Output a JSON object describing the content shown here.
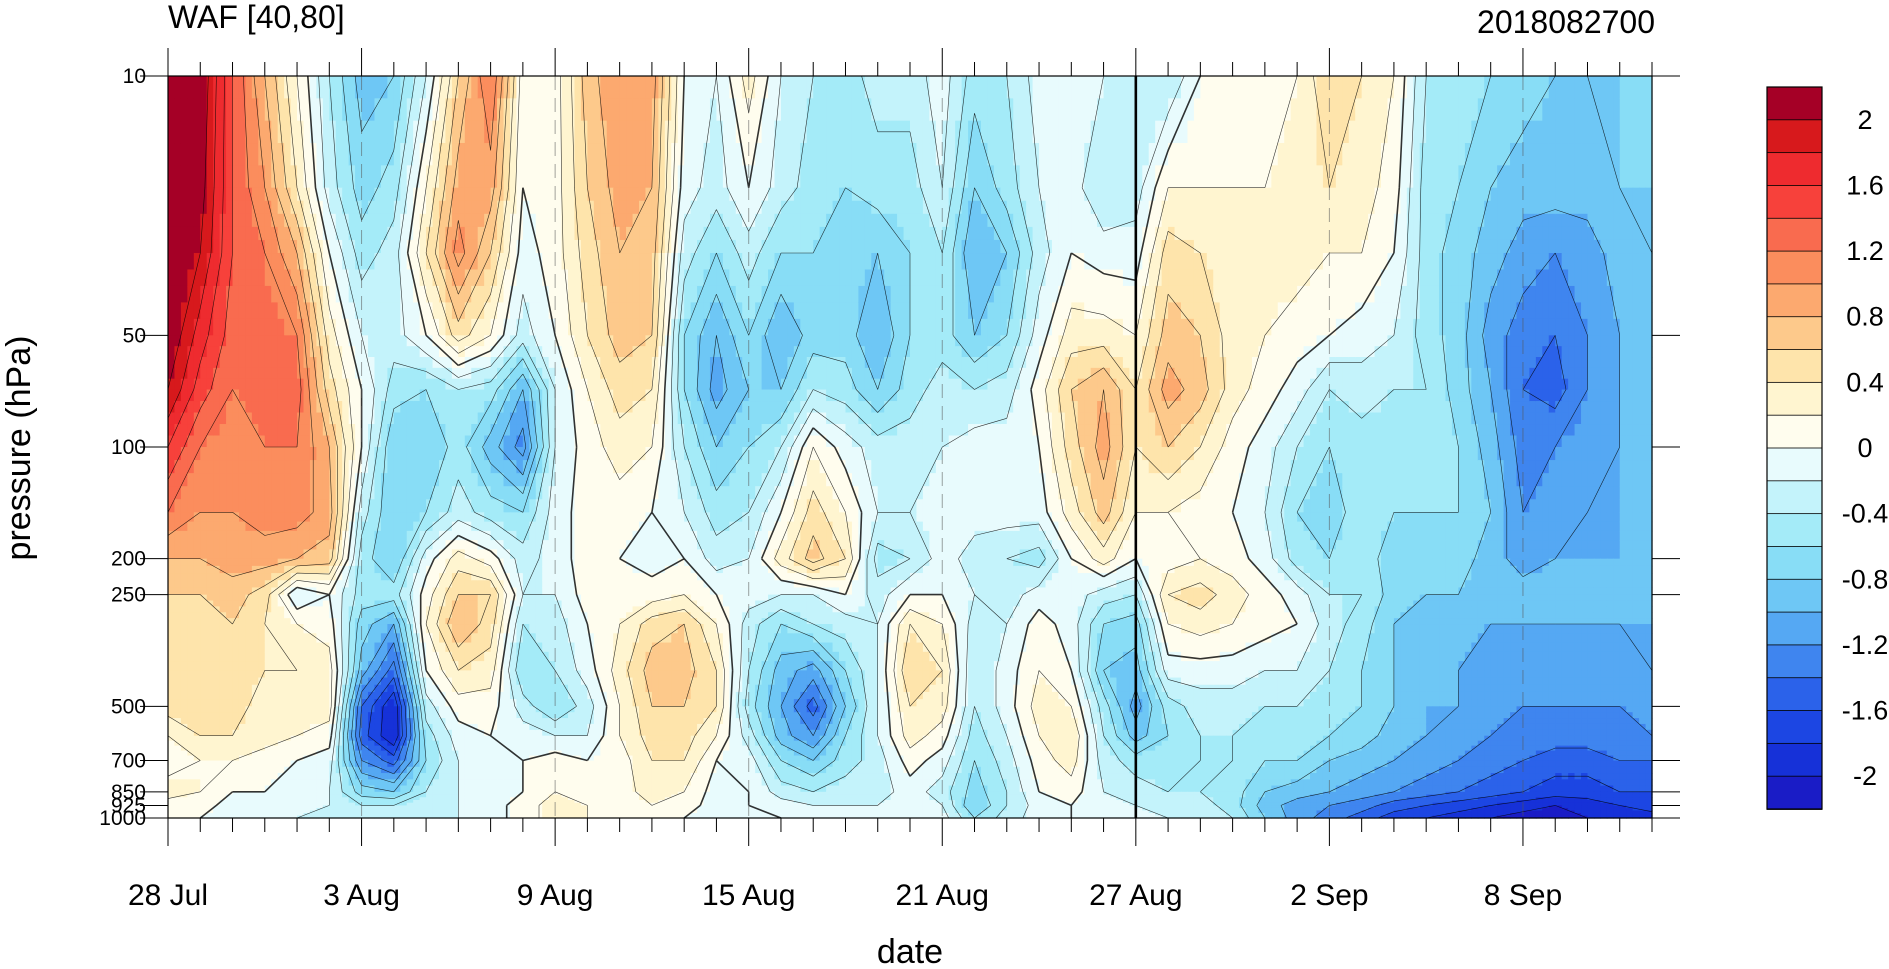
{
  "chart_data": {
    "type": "contour",
    "title": "WAF [40,80]",
    "right_title": "2018082700",
    "xlabel": "date",
    "ylabel": "pressure (hPa)",
    "x_ticks": [
      "28 Jul",
      "3 Aug",
      "9 Aug",
      "15 Aug",
      "21 Aug",
      "27 Aug",
      "2 Sep",
      "8 Sep"
    ],
    "x_range": [
      "2018-07-28",
      "2018-09-12"
    ],
    "marker_date": "27 Aug",
    "y_ticks": [
      10,
      50,
      100,
      200,
      250,
      500,
      700,
      850,
      925,
      1000
    ],
    "y_tick_labels": [
      "10",
      "50",
      "100",
      "200",
      "250",
      "500",
      "700",
      "850",
      "925",
      "1000"
    ],
    "y_scale": "log",
    "y_range": [
      1000,
      10
    ],
    "colorbar": {
      "labels": [
        "2",
        "1.6",
        "1.2",
        "0.8",
        "0.4",
        "0",
        "-0.4",
        "-0.8",
        "-1.2",
        "-1.6",
        "-2"
      ],
      "levels": [
        2.2,
        2.0,
        1.8,
        1.6,
        1.4,
        1.2,
        1.0,
        0.8,
        0.6,
        0.4,
        0.2,
        0.0,
        -0.2,
        -0.4,
        -0.6,
        -0.8,
        -1.0,
        -1.2,
        -1.4,
        -1.6,
        -1.8,
        -2.0,
        -2.2
      ],
      "colors": [
        "#a50026",
        "#d7191c",
        "#ee2b2f",
        "#f7413b",
        "#f96b4f",
        "#fb8d5d",
        "#fca96f",
        "#fdc98b",
        "#fee4ab",
        "#fff5d0",
        "#fffdee",
        "#e8fbfd",
        "#c4f3fb",
        "#a4ebf8",
        "#88ddf6",
        "#6ec7f5",
        "#55a8f3",
        "#3f85ef",
        "#2b62ea",
        "#1c46e3",
        "#1631d8",
        "#1a1cc6"
      ]
    },
    "levels": [
      10,
      20,
      30,
      50,
      70,
      100,
      150,
      200,
      250,
      300,
      400,
      500,
      600,
      700,
      850,
      925,
      1000
    ],
    "days": [
      "28 Jul",
      "29 Jul",
      "30 Jul",
      "31 Jul",
      "1 Aug",
      "2 Aug",
      "3 Aug",
      "4 Aug",
      "5 Aug",
      "6 Aug",
      "7 Aug",
      "8 Aug",
      "9 Aug",
      "10 Aug",
      "11 Aug",
      "12 Aug",
      "13 Aug",
      "14 Aug",
      "15 Aug",
      "16 Aug",
      "17 Aug",
      "18 Aug",
      "19 Aug",
      "20 Aug",
      "21 Aug",
      "22 Aug",
      "23 Aug",
      "24 Aug",
      "25 Aug",
      "26 Aug",
      "27 Aug",
      "28 Aug",
      "29 Aug",
      "30 Aug",
      "31 Aug",
      "1 Sep",
      "2 Sep",
      "3 Sep",
      "4 Sep",
      "5 Sep",
      "6 Sep",
      "7 Sep",
      "8 Sep",
      "9 Sep",
      "10 Sep",
      "11 Sep",
      "12 Sep"
    ],
    "values": [
      [
        2.2,
        2.2,
        2.2,
        2.2,
        2.0,
        1.6,
        1.2,
        0.8,
        0.6,
        0.4,
        0.4,
        0.5,
        0.2,
        0.1,
        0.3,
        0.1,
        0.1
      ],
      [
        2.2,
        2.1,
        2.0,
        1.7,
        1.5,
        1.2,
        1.0,
        0.8,
        0.6,
        0.5,
        0.5,
        0.6,
        0.4,
        0.2,
        0.2,
        0.1,
        0.0
      ],
      [
        1.4,
        1.4,
        1.4,
        1.3,
        1.2,
        1.1,
        1.0,
        0.9,
        0.7,
        0.6,
        0.5,
        0.5,
        0.4,
        0.2,
        0.0,
        -0.1,
        -0.1
      ],
      [
        0.8,
        1.0,
        1.2,
        1.3,
        1.3,
        1.2,
        1.1,
        0.9,
        0.5,
        0.4,
        0.4,
        0.3,
        0.3,
        0.1,
        0.0,
        -0.1,
        -0.1
      ],
      [
        0.2,
        0.4,
        0.8,
        1.2,
        1.3,
        1.2,
        1.1,
        0.8,
        -0.2,
        0.2,
        0.4,
        0.3,
        0.2,
        0.0,
        -0.1,
        -0.1,
        -0.2
      ],
      [
        -0.4,
        -0.3,
        0.0,
        0.3,
        0.5,
        0.8,
        0.9,
        0.7,
        0.0,
        0.1,
        0.3,
        0.3,
        0.1,
        -0.1,
        -0.2,
        -0.2,
        -0.3
      ],
      [
        -0.9,
        -0.7,
        -0.5,
        -0.2,
        0.0,
        0.0,
        -0.3,
        -0.5,
        -0.5,
        -0.7,
        -0.9,
        -1.4,
        -1.5,
        -1.2,
        -0.7,
        -0.4,
        -0.3
      ],
      [
        -0.8,
        -0.5,
        -0.3,
        -0.3,
        -0.5,
        -0.8,
        -0.8,
        -0.8,
        -0.5,
        -1.0,
        -1.5,
        -2.0,
        -2.0,
        -1.5,
        -0.8,
        -0.4,
        -0.3
      ],
      [
        -0.2,
        0.2,
        0.4,
        0.0,
        -0.6,
        -0.8,
        -0.6,
        -0.1,
        0.1,
        0.2,
        0.0,
        -0.3,
        -0.5,
        -0.6,
        -0.4,
        -0.3,
        -0.3
      ],
      [
        0.6,
        0.9,
        1.1,
        0.5,
        -0.4,
        -0.5,
        -0.3,
        0.3,
        0.6,
        0.8,
        0.4,
        0.1,
        -0.1,
        -0.2,
        -0.2,
        -0.2,
        -0.2
      ],
      [
        1.2,
        0.9,
        0.6,
        0.2,
        -0.5,
        -0.9,
        -0.5,
        0.1,
        0.6,
        0.5,
        0.3,
        0.1,
        0.0,
        -0.1,
        -0.1,
        -0.1,
        -0.1
      ],
      [
        0.1,
        0.0,
        -0.1,
        -0.3,
        -1.0,
        -1.3,
        -0.6,
        -0.3,
        -0.2,
        -0.4,
        -0.6,
        -0.3,
        -0.1,
        0.0,
        0.0,
        0.1,
        0.1
      ],
      [
        0.1,
        0.1,
        0.1,
        0.0,
        -0.2,
        -0.2,
        -0.1,
        -0.1,
        -0.2,
        -0.3,
        -0.4,
        -0.6,
        -0.2,
        0.1,
        0.2,
        0.3,
        0.3
      ],
      [
        0.7,
        0.6,
        0.5,
        0.4,
        0.2,
        0.1,
        0.1,
        0.1,
        0.1,
        0.0,
        -0.1,
        -0.3,
        -0.2,
        0.0,
        0.1,
        0.2,
        0.2
      ],
      [
        1.0,
        0.9,
        0.8,
        0.7,
        0.5,
        0.3,
        0.1,
        0.0,
        0.1,
        0.2,
        0.3,
        0.2,
        0.2,
        0.1,
        0.1,
        0.1,
        0.1
      ],
      [
        0.9,
        0.8,
        0.7,
        0.6,
        0.4,
        0.2,
        0.0,
        -0.1,
        0.1,
        0.5,
        0.7,
        0.6,
        0.5,
        0.4,
        0.3,
        0.2,
        0.1
      ],
      [
        0.0,
        -0.1,
        -0.3,
        -0.6,
        -0.6,
        -0.4,
        -0.2,
        0.0,
        0.2,
        0.6,
        0.7,
        0.6,
        0.5,
        0.4,
        0.2,
        0.1,
        0.0
      ],
      [
        -0.2,
        -0.3,
        -0.6,
        -1.0,
        -1.1,
        -0.8,
        -0.5,
        -0.3,
        0.0,
        0.2,
        0.4,
        0.4,
        0.2,
        0.0,
        -0.1,
        -0.1,
        -0.1
      ],
      [
        0.3,
        0.0,
        -0.3,
        -0.6,
        -0.8,
        -0.6,
        -0.4,
        -0.2,
        -0.1,
        -0.3,
        -0.4,
        -0.5,
        -0.3,
        -0.1,
        0.0,
        0.0,
        -0.1
      ],
      [
        -0.2,
        -0.3,
        -0.6,
        -1.0,
        -0.8,
        -0.4,
        0.0,
        0.3,
        -0.2,
        -0.6,
        -0.9,
        -1.0,
        -0.9,
        -0.6,
        -0.3,
        -0.1,
        0.0
      ],
      [
        -0.4,
        -0.5,
        -0.6,
        -0.7,
        -0.4,
        0.2,
        0.5,
        0.7,
        -0.2,
        -0.4,
        -1.1,
        -1.5,
        -1.2,
        -0.8,
        -0.4,
        -0.2,
        -0.1
      ],
      [
        -0.5,
        -0.6,
        -0.7,
        -0.7,
        -0.5,
        -0.1,
        0.2,
        0.4,
        0.0,
        -0.3,
        -0.6,
        -0.8,
        -0.6,
        -0.5,
        -0.3,
        -0.2,
        -0.1
      ],
      [
        -0.3,
        -0.5,
        -0.8,
        -1.0,
        -0.8,
        -0.3,
        -0.2,
        -0.5,
        -0.3,
        -0.2,
        -0.2,
        -0.2,
        -0.2,
        -0.3,
        -0.3,
        -0.2,
        -0.1
      ],
      [
        -0.3,
        -0.5,
        -0.6,
        -0.6,
        -0.5,
        -0.3,
        -0.2,
        -0.4,
        0.0,
        0.4,
        0.6,
        0.4,
        0.3,
        0.1,
        -0.1,
        -0.1,
        -0.1
      ],
      [
        -0.1,
        -0.2,
        -0.4,
        -0.5,
        -0.3,
        -0.2,
        -0.1,
        -0.1,
        0.0,
        0.2,
        0.4,
        0.3,
        0.1,
        -0.1,
        -0.3,
        -0.2,
        -0.1
      ],
      [
        -0.5,
        -0.8,
        -1.0,
        -0.8,
        -0.4,
        -0.1,
        -0.1,
        -0.3,
        -0.2,
        -0.3,
        -0.4,
        -0.4,
        -0.5,
        -0.6,
        -0.7,
        -0.8,
        -0.6
      ],
      [
        -0.4,
        -0.5,
        -0.8,
        -0.6,
        -0.3,
        -0.1,
        -0.1,
        -0.4,
        -0.3,
        -0.2,
        -0.1,
        -0.1,
        -0.2,
        -0.3,
        -0.4,
        -0.4,
        -0.3
      ],
      [
        -0.1,
        -0.2,
        -0.3,
        -0.1,
        0.1,
        0.0,
        -0.1,
        -0.5,
        -0.1,
        0.1,
        0.2,
        0.3,
        0.2,
        0.1,
        0.0,
        -0.1,
        -0.1
      ],
      [
        0.0,
        -0.1,
        0.0,
        0.3,
        0.6,
        0.5,
        0.3,
        0.0,
        -0.1,
        -0.1,
        0.0,
        0.2,
        0.4,
        0.3,
        0.1,
        0.0,
        0.0
      ],
      [
        -0.2,
        -0.4,
        -0.1,
        0.3,
        0.8,
        0.9,
        0.7,
        0.3,
        -0.3,
        -0.6,
        -0.8,
        -0.5,
        -0.4,
        -0.3,
        -0.2,
        -0.1,
        -0.1
      ],
      [
        -0.4,
        -0.3,
        -0.1,
        0.2,
        0.4,
        0.4,
        0.2,
        0.0,
        -0.4,
        -0.7,
        -0.9,
        -1.1,
        -0.9,
        -0.5,
        -0.3,
        -0.2,
        -0.1
      ],
      [
        -0.4,
        0.2,
        0.5,
        0.7,
        0.9,
        0.6,
        0.2,
        0.1,
        0.4,
        0.2,
        -0.1,
        -0.5,
        -0.6,
        -0.5,
        -0.4,
        -0.3,
        -0.2
      ],
      [
        0.0,
        0.2,
        0.4,
        0.6,
        0.7,
        0.4,
        0.1,
        0.2,
        0.5,
        0.3,
        -0.1,
        -0.3,
        -0.4,
        -0.4,
        -0.4,
        -0.3,
        -0.2
      ],
      [
        0.0,
        0.2,
        0.3,
        0.3,
        0.3,
        0.1,
        0.0,
        0.1,
        0.3,
        0.2,
        -0.1,
        -0.3,
        -0.4,
        -0.4,
        -0.5,
        -0.5,
        -0.4
      ],
      [
        0.1,
        0.2,
        0.3,
        0.2,
        0.1,
        -0.1,
        -0.2,
        -0.1,
        0.1,
        0.1,
        -0.2,
        -0.4,
        -0.5,
        -0.6,
        -0.8,
        -0.9,
        -0.8
      ],
      [
        0.2,
        0.3,
        0.3,
        0.1,
        -0.1,
        -0.4,
        -0.6,
        -0.5,
        -0.1,
        0.0,
        -0.2,
        -0.4,
        -0.5,
        -0.6,
        -0.9,
        -1.1,
        -1.1
      ],
      [
        0.6,
        0.4,
        0.2,
        0.0,
        -0.4,
        -0.6,
        -0.7,
        -0.6,
        -0.4,
        -0.3,
        -0.4,
        -0.5,
        -0.6,
        -0.8,
        -1.0,
        -1.2,
        -1.3
      ],
      [
        0.4,
        0.3,
        0.2,
        -0.1,
        -0.3,
        -0.5,
        -0.5,
        -0.5,
        -0.4,
        -0.5,
        -0.6,
        -0.6,
        -0.7,
        -0.9,
        -1.1,
        -1.3,
        -1.5
      ],
      [
        0.2,
        0.1,
        0.0,
        -0.2,
        -0.4,
        -0.5,
        -0.6,
        -0.7,
        -0.7,
        -0.8,
        -0.8,
        -0.8,
        -0.9,
        -1.0,
        -1.2,
        -1.5,
        -1.7
      ],
      [
        -0.4,
        -0.5,
        -0.5,
        -0.5,
        -0.4,
        -0.5,
        -0.6,
        -0.7,
        -0.8,
        -0.9,
        -0.9,
        -1.0,
        -1.0,
        -1.1,
        -1.3,
        -1.6,
        -1.8
      ],
      [
        -0.5,
        -0.6,
        -0.7,
        -0.7,
        -0.7,
        -0.6,
        -0.6,
        -0.7,
        -0.8,
        -0.9,
        -1.0,
        -1.0,
        -1.1,
        -1.2,
        -1.4,
        -1.7,
        -1.9
      ],
      [
        -0.6,
        -0.8,
        -0.9,
        -1.1,
        -1.0,
        -0.9,
        -0.8,
        -0.9,
        -0.9,
        -1.0,
        -1.1,
        -1.1,
        -1.2,
        -1.3,
        -1.5,
        -1.8,
        -2.0
      ],
      [
        -0.7,
        -0.9,
        -1.1,
        -1.3,
        -1.4,
        -1.3,
        -1.2,
        -1.1,
        -0.9,
        -1.0,
        -1.1,
        -1.2,
        -1.3,
        -1.4,
        -1.6,
        -1.9,
        -2.1
      ],
      [
        -0.8,
        -0.9,
        -1.2,
        -1.4,
        -1.5,
        -1.2,
        -1.1,
        -1.0,
        -0.9,
        -1.0,
        -1.1,
        -1.2,
        -1.3,
        -1.5,
        -1.7,
        -2.0,
        -2.1
      ],
      [
        -0.8,
        -0.9,
        -1.1,
        -1.2,
        -1.2,
        -1.1,
        -1.0,
        -1.0,
        -0.9,
        -1.0,
        -1.1,
        -1.2,
        -1.3,
        -1.5,
        -1.7,
        -1.9,
        -2.0
      ],
      [
        -0.8,
        -0.8,
        -0.9,
        -1.0,
        -1.0,
        -1.0,
        -1.0,
        -1.0,
        -1.0,
        -1.0,
        -1.1,
        -1.2,
        -1.3,
        -1.4,
        -1.6,
        -1.8,
        -1.9
      ],
      [
        -0.7,
        -0.8,
        -0.8,
        -0.9,
        -0.9,
        -0.9,
        -0.9,
        -0.9,
        -0.9,
        -1.0,
        -1.0,
        -1.1,
        -1.2,
        -1.4,
        -1.6,
        -1.7,
        -1.9
      ]
    ]
  }
}
